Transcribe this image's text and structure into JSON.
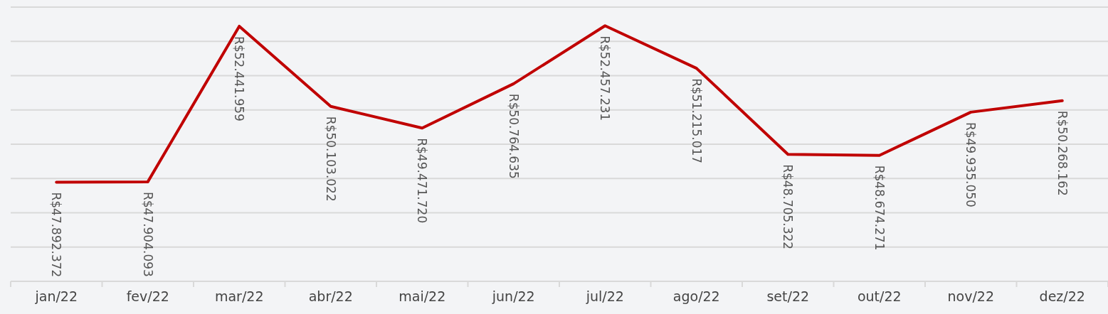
{
  "chart_data": {
    "type": "line",
    "categories": [
      "jan/22",
      "fev/22",
      "mar/22",
      "abr/22",
      "mai/22",
      "jun/22",
      "jul/22",
      "ago/22",
      "set/22",
      "out/22",
      "nov/22",
      "dez/22"
    ],
    "series": [
      {
        "color": "#c00000",
        "values": [
          47892372,
          47904093,
          52441959,
          50103022,
          49471720,
          50764635,
          52457231,
          51215017,
          48705322,
          48674271,
          49935050,
          50268162
        ],
        "value_labels": [
          "R$47.892.372",
          "R$47.904.093",
          "R$52.441.959",
          "R$50.103.022",
          "R$49.471.720",
          "R$50.764.635",
          "R$52.457.231",
          "R$51.215.017",
          "R$48.705.322",
          "R$48.674.271",
          "R$49.935.050",
          "R$50.268.162"
        ]
      }
    ],
    "ylim": [
      45000000,
      53000000
    ],
    "yticks": [
      {
        "value": 45000000,
        "label": null
      },
      {
        "value": 46000000,
        "label": null
      },
      {
        "value": 47000000,
        "label": null
      },
      {
        "value": 48000000,
        "label": null
      },
      {
        "value": 49000000,
        "label": null
      },
      {
        "value": 50000000,
        "label": null
      },
      {
        "value": 51000000,
        "label": null
      },
      {
        "value": 52000000,
        "label": null
      },
      {
        "value": 53000000,
        "label": null
      }
    ],
    "grid": "y",
    "marker": "none",
    "line_style": "solid"
  }
}
